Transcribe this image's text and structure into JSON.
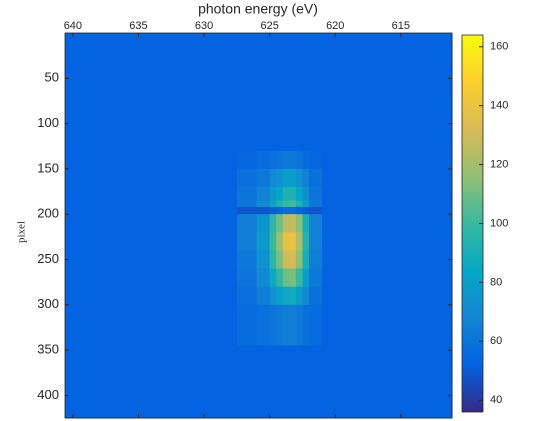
{
  "chart_data": {
    "type": "heatmap",
    "x_label": "photon energy (eV)",
    "y_label": "pixel",
    "x_edges": [
      640.6,
      627.5,
      626,
      625,
      624.5,
      624,
      623.5,
      623,
      622.5,
      622,
      621,
      611.1
    ],
    "y_edges": [
      0,
      130,
      150,
      170,
      185,
      192,
      200,
      220,
      240,
      260,
      280,
      300,
      345,
      425
    ],
    "values": [
      [
        52,
        52,
        52,
        52,
        52,
        52,
        52,
        52,
        52,
        52,
        52
      ],
      [
        52,
        54,
        56,
        58,
        60,
        62,
        62,
        60,
        56,
        54,
        52
      ],
      [
        52,
        58,
        62,
        70,
        74,
        80,
        80,
        74,
        66,
        58,
        52
      ],
      [
        52,
        60,
        66,
        78,
        84,
        92,
        92,
        84,
        72,
        60,
        52
      ],
      [
        52,
        62,
        70,
        84,
        92,
        100,
        102,
        92,
        78,
        62,
        52
      ],
      [
        52,
        48,
        48,
        50,
        52,
        56,
        56,
        52,
        50,
        48,
        52
      ],
      [
        52,
        64,
        76,
        96,
        110,
        125,
        128,
        115,
        90,
        66,
        52
      ],
      [
        52,
        64,
        78,
        100,
        118,
        138,
        140,
        122,
        94,
        66,
        52
      ],
      [
        52,
        62,
        74,
        96,
        112,
        130,
        132,
        116,
        90,
        64,
        52
      ],
      [
        52,
        60,
        70,
        86,
        98,
        110,
        112,
        100,
        80,
        62,
        52
      ],
      [
        52,
        58,
        64,
        74,
        80,
        86,
        88,
        80,
        70,
        58,
        52
      ],
      [
        52,
        56,
        58,
        60,
        62,
        64,
        64,
        62,
        58,
        56,
        52
      ],
      [
        52,
        52,
        52,
        52,
        52,
        52,
        52,
        52,
        52,
        52,
        52
      ]
    ],
    "xlim": [
      640.6,
      611.1
    ],
    "xticks": [
      640,
      635,
      630,
      625,
      620,
      615
    ],
    "ylim": [
      0,
      425
    ],
    "yticks": [
      50,
      100,
      150,
      200,
      250,
      300,
      350,
      400
    ],
    "clim": [
      36,
      164
    ],
    "cticks": [
      40,
      60,
      80,
      100,
      120,
      140,
      160
    ],
    "colormap": [
      "#352a87",
      "#0363e1",
      "#1485d4",
      "#06a7c6",
      "#38b99e",
      "#92bf73",
      "#d9ba56",
      "#fcce2e",
      "#f9fb0e"
    ]
  }
}
